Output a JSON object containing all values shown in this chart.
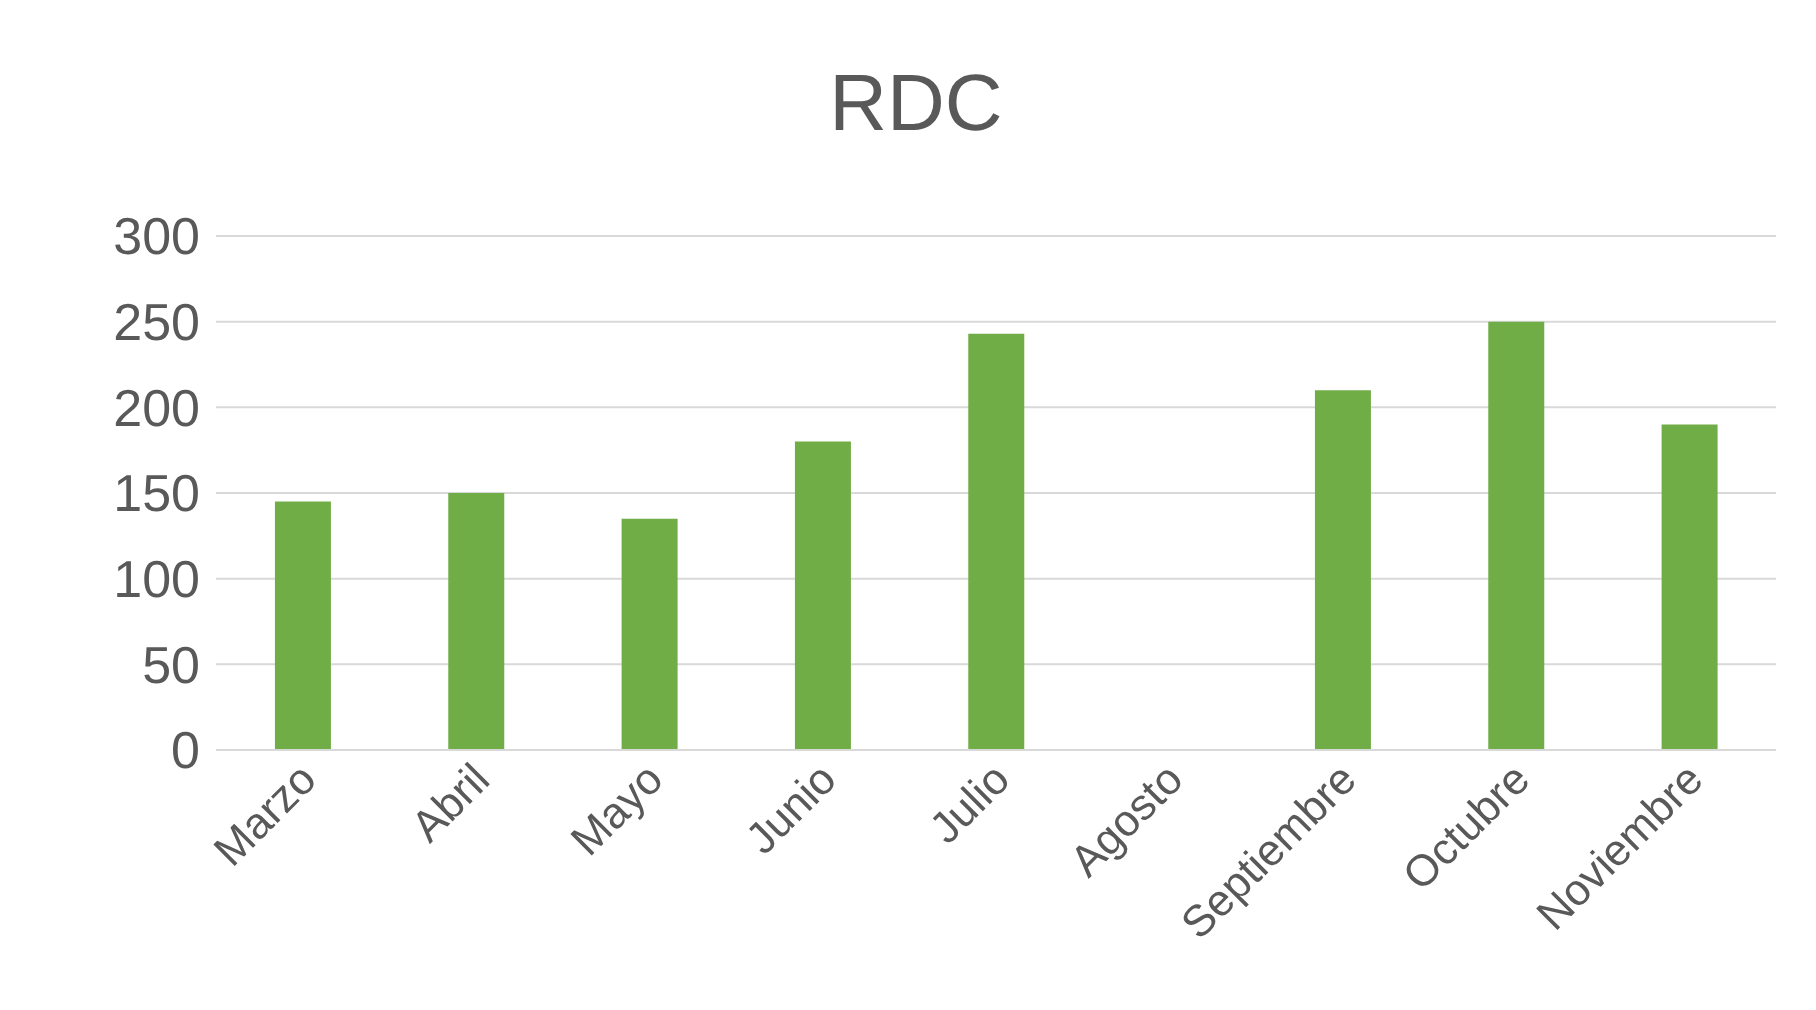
{
  "chart_data": {
    "type": "bar",
    "title": "RDC",
    "categories": [
      "Marzo",
      "Abril",
      "Mayo",
      "Junio",
      "Julio",
      "Agosto",
      "Septiembre",
      "Octubre",
      "Noviembre"
    ],
    "series": [
      {
        "color": "#70ad47",
        "values": [
          145,
          150,
          135,
          180,
          243,
          null,
          210,
          250,
          190
        ]
      }
    ],
    "ylim": [
      0,
      300
    ],
    "yticks": [
      0,
      50,
      100,
      150,
      200,
      250,
      300
    ],
    "grid": "y",
    "legend": false
  }
}
